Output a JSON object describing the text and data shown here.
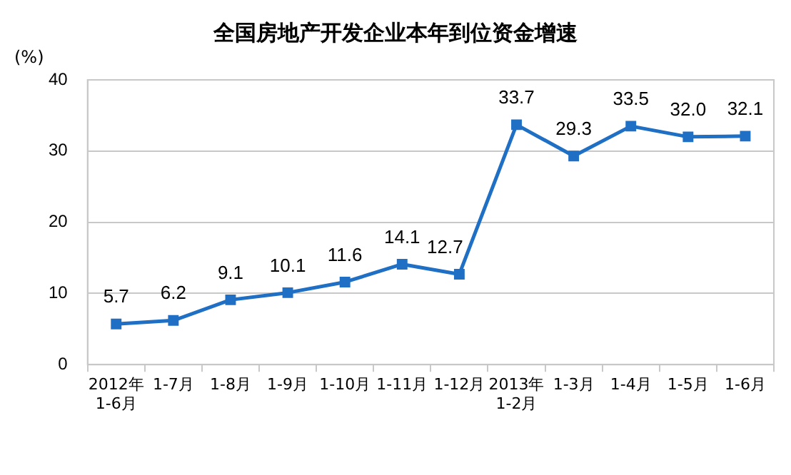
{
  "chart_data": {
    "type": "line",
    "title": "全国房地产开发企业本年到位资金增速",
    "ylabel": "(%)",
    "categories": [
      "2012年\n1-6月",
      "1-7月",
      "1-8月",
      "1-9月",
      "1-10月",
      "1-11月",
      "1-12月",
      "2013年\n1-2月",
      "1-3月",
      "1-4月",
      "1-5月",
      "1-6月"
    ],
    "series": [
      {
        "color": "#1f6fc5",
        "values": [
          5.7,
          6.2,
          9.1,
          10.1,
          11.6,
          14.1,
          12.7,
          33.7,
          29.3,
          33.5,
          32.0,
          32.1
        ],
        "value_labels": [
          "5.7",
          "6.2",
          "9.1",
          "10.1",
          "11.6",
          "14.1",
          "12.7",
          "33.7",
          "29.3",
          "33.5",
          "32.0",
          "32.1"
        ]
      }
    ],
    "ylim": [
      0,
      40
    ],
    "yticks": [
      0,
      10,
      20,
      30,
      40
    ],
    "grid": "y",
    "marker": "square",
    "line_style": "solid",
    "legend": false
  }
}
